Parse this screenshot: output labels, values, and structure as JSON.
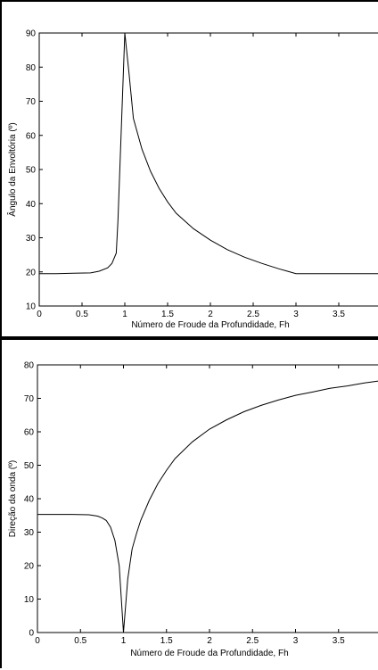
{
  "chart_data": [
    {
      "type": "line",
      "title": "",
      "xlabel": "Número de Froude da Profundidade, Fh",
      "ylabel": "Ângulo da Envoltória (º)",
      "xlim": [
        0,
        4
      ],
      "ylim": [
        10,
        90
      ],
      "xticks": [
        "0",
        "0.5",
        "1",
        "1.5",
        "2",
        "2.5",
        "3",
        "3.5",
        "4"
      ],
      "yticks": [
        "10",
        "20",
        "30",
        "40",
        "50",
        "60",
        "70",
        "80",
        "90"
      ],
      "grid": false,
      "line_color": "#000000",
      "series": [
        {
          "x": [
            0,
            0.2,
            0.4,
            0.6,
            0.7,
            0.8,
            0.85,
            0.9,
            0.92,
            1.0,
            1.05,
            1.1,
            1.2,
            1.3,
            1.4,
            1.5,
            1.6,
            1.8,
            2.0,
            2.2,
            2.4,
            2.6,
            2.8,
            2.9,
            3.0,
            3.2,
            3.5,
            3.8,
            4.0
          ],
          "y": [
            19.5,
            19.5,
            19.6,
            19.7,
            20.2,
            21.2,
            22.5,
            25.5,
            35,
            90,
            78,
            65,
            56,
            49.5,
            44.5,
            40.5,
            37.2,
            32.7,
            29.3,
            26.5,
            24.3,
            22.5,
            20.9,
            20.2,
            19.5,
            19.5,
            19.5,
            19.5,
            19.5
          ]
        }
      ]
    },
    {
      "type": "line",
      "title": "",
      "xlabel": "Número de Froude da Profundidade, Fh",
      "ylabel": "Direção da onda (º)",
      "xlim": [
        0,
        4
      ],
      "ylim": [
        0,
        80
      ],
      "xticks": [
        "0",
        "0.5",
        "1",
        "1.5",
        "2",
        "2.5",
        "3",
        "3.5",
        "4"
      ],
      "yticks": [
        "0",
        "10",
        "20",
        "30",
        "40",
        "50",
        "60",
        "70",
        "80"
      ],
      "grid": false,
      "line_color": "#000000",
      "series": [
        {
          "x": [
            0,
            0.2,
            0.4,
            0.6,
            0.7,
            0.75,
            0.8,
            0.85,
            0.9,
            0.95,
            1.0,
            1.05,
            1.1,
            1.15,
            1.2,
            1.3,
            1.4,
            1.5,
            1.6,
            1.8,
            2.0,
            2.2,
            2.4,
            2.6,
            2.8,
            3.0,
            3.2,
            3.4,
            3.6,
            3.8,
            4.0
          ],
          "y": [
            35.3,
            35.3,
            35.3,
            35.2,
            34.8,
            34.3,
            33.5,
            31.5,
            27.5,
            20,
            0,
            16,
            25,
            29.5,
            33.5,
            39.5,
            44.5,
            48.5,
            52,
            57,
            60.8,
            63.6,
            66,
            67.9,
            69.5,
            70.9,
            71.9,
            73,
            73.7,
            74.6,
            75.3
          ]
        }
      ]
    }
  ]
}
